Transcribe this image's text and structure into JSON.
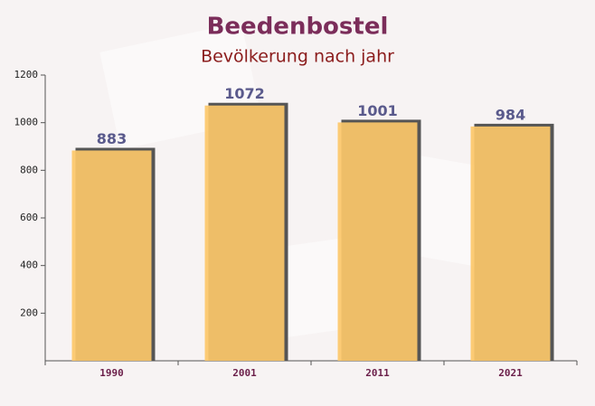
{
  "chart_data": {
    "type": "bar",
    "title": "Beedenbostel",
    "subtitle": "Bevölkerung nach jahr",
    "categories": [
      "1990",
      "2001",
      "2011",
      "2021"
    ],
    "values": [
      883,
      1072,
      1001,
      984
    ],
    "color": "#fcc86a",
    "ylim": [
      0,
      1200
    ],
    "yticks": [
      200,
      400,
      600,
      800,
      1000,
      1200
    ]
  }
}
